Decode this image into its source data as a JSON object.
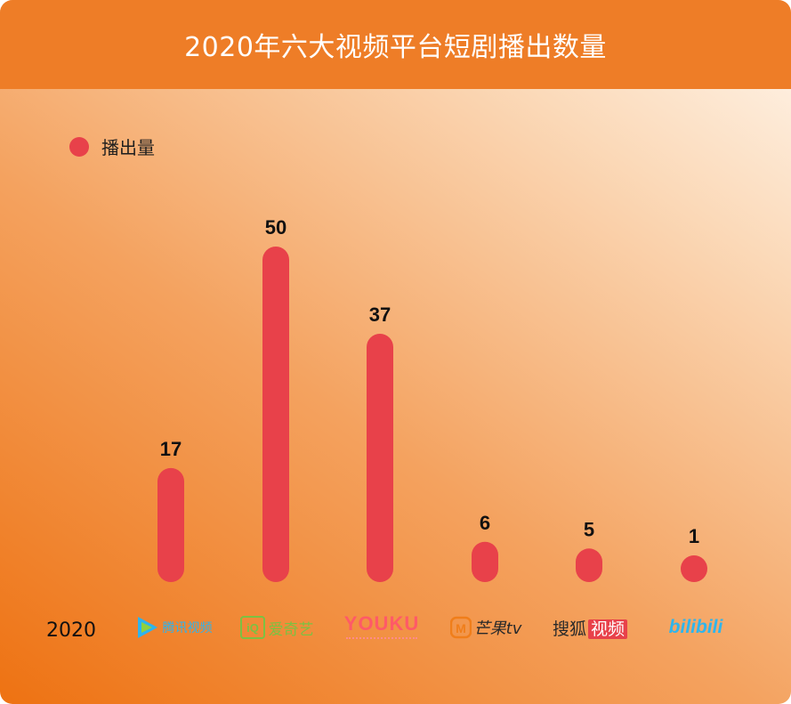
{
  "title": "2020年六大视频平台短剧播出数量",
  "legend": {
    "label": "播出量",
    "color": "#e8414a"
  },
  "year": "2020",
  "platforms": [
    {
      "name": "腾讯视频",
      "logo_text": "腾讯视频",
      "logo_color": "#2fb3ec",
      "logo_icon": "play-triangle-icon"
    },
    {
      "name": "爱奇艺",
      "logo_text": "爱奇艺",
      "logo_color": "#7cc142",
      "logo_icon": "iqiyi-box-icon"
    },
    {
      "name": "优酷",
      "logo_text": "YOUKU",
      "logo_color": "#ff5a67",
      "logo_icon": "youku-wordmark"
    },
    {
      "name": "芒果TV",
      "logo_text": "芒果tv",
      "logo_color": "#2a2a2a",
      "logo_icon": "mango-tv-icon"
    },
    {
      "name": "搜狐视频",
      "logo_text": "搜狐视频",
      "logo_color": "#e8414a",
      "logo_icon": "sohu-wordmark"
    },
    {
      "name": "哔哩哔哩",
      "logo_text": "bilibili",
      "logo_color": "#2fb5ec",
      "logo_icon": "bilibili-wordmark"
    }
  ],
  "chart_data": {
    "type": "bar",
    "title": "2020年六大视频平台短剧播出数量",
    "categories": [
      "腾讯视频",
      "爱奇艺",
      "优酷",
      "芒果TV",
      "搜狐视频",
      "哔哩哔哩"
    ],
    "series": [
      {
        "name": "播出量",
        "values": [
          17,
          50,
          37,
          6,
          5,
          1
        ],
        "color": "#e8414a"
      }
    ],
    "ylim": [
      0,
      50
    ],
    "grid": false,
    "legend": "top-left",
    "data_labels": true
  }
}
